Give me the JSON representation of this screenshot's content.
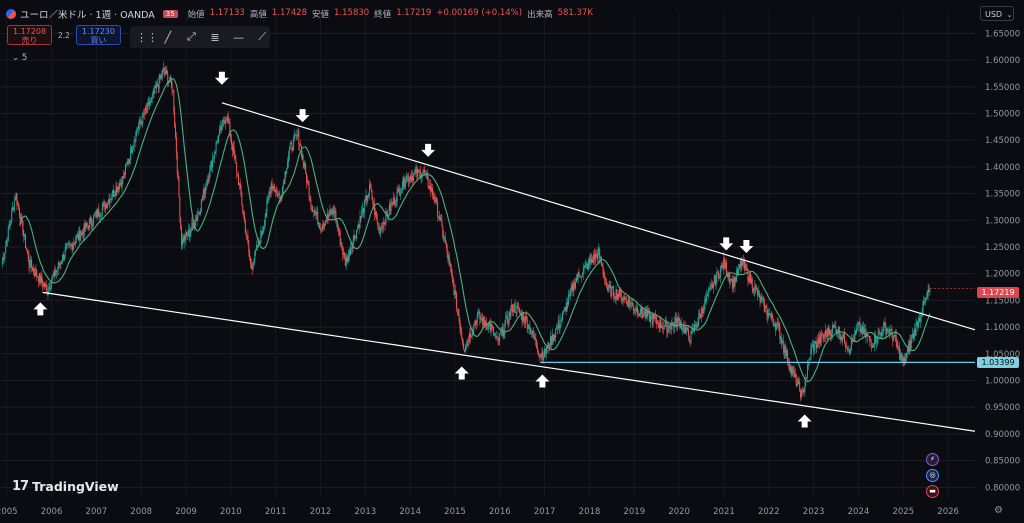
{
  "header": {
    "symbol": "ユーロ／米ドル · 1週 · OANDA",
    "badge": "35",
    "open_label": "始値",
    "open": "1.17133",
    "high_label": "高値",
    "high": "1.17428",
    "low_label": "安値",
    "low": "1.15830",
    "close_label": "終値",
    "close": "1.17219",
    "change": "+0.00169 (+0.14%)",
    "volume_label": "出来高",
    "volume": "581.37K"
  },
  "trade": {
    "sell_price": "1.17208",
    "sell_label": "売り",
    "spread": "2.2",
    "buy_price": "1.17230",
    "buy_label": "買い"
  },
  "toolbar": {
    "icons": [
      "drag-handle-icon",
      "trend-line-icon",
      "ray-icon",
      "fib-icon",
      "horizontal-line-icon",
      "extended-line-icon"
    ]
  },
  "indicators": {
    "count": "5"
  },
  "currency": "USD",
  "logo": {
    "mark": "17",
    "text": "TradingView"
  },
  "colors": {
    "bull": "#26a69a",
    "bear": "#ef5350",
    "ma": "#4caf7f",
    "trendline": "#ffffff",
    "support": "#5fd0e8",
    "price_tag": "#e0454d",
    "background": "#0b0c12"
  },
  "chart_data": {
    "type": "candlestick",
    "timeframe": "1週",
    "x_ticks": [
      "2005",
      "2006",
      "2007",
      "2008",
      "2009",
      "2010",
      "2011",
      "2012",
      "2013",
      "2014",
      "2015",
      "2016",
      "2017",
      "2018",
      "2019",
      "2020",
      "2021",
      "2022",
      "2023",
      "2024",
      "2025",
      "2026"
    ],
    "y_ticks": [
      0.8,
      0.85,
      0.9,
      0.95,
      1.0,
      1.05,
      1.1,
      1.15,
      1.2,
      1.25,
      1.3,
      1.35,
      1.4,
      1.45,
      1.5,
      1.55,
      1.6,
      1.65
    ],
    "ylim": [
      0.78,
      1.69
    ],
    "xlim": [
      2004.85,
      2026.6
    ],
    "price_path": [
      [
        2004.9,
        1.22
      ],
      [
        2005.2,
        1.35
      ],
      [
        2005.5,
        1.22
      ],
      [
        2005.9,
        1.17
      ],
      [
        2006.3,
        1.24
      ],
      [
        2006.8,
        1.29
      ],
      [
        2007.2,
        1.33
      ],
      [
        2007.6,
        1.38
      ],
      [
        2007.9,
        1.47
      ],
      [
        2008.2,
        1.52
      ],
      [
        2008.5,
        1.58
      ],
      [
        2008.7,
        1.55
      ],
      [
        2008.9,
        1.26
      ],
      [
        2009.1,
        1.28
      ],
      [
        2009.3,
        1.32
      ],
      [
        2009.7,
        1.45
      ],
      [
        2009.9,
        1.5
      ],
      [
        2010.2,
        1.36
      ],
      [
        2010.45,
        1.21
      ],
      [
        2010.7,
        1.28
      ],
      [
        2010.9,
        1.37
      ],
      [
        2011.1,
        1.34
      ],
      [
        2011.3,
        1.43
      ],
      [
        2011.5,
        1.46
      ],
      [
        2011.8,
        1.33
      ],
      [
        2012.0,
        1.29
      ],
      [
        2012.3,
        1.32
      ],
      [
        2012.55,
        1.22
      ],
      [
        2012.8,
        1.28
      ],
      [
        2013.1,
        1.36
      ],
      [
        2013.3,
        1.28
      ],
      [
        2013.6,
        1.33
      ],
      [
        2013.9,
        1.38
      ],
      [
        2014.3,
        1.39
      ],
      [
        2014.55,
        1.34
      ],
      [
        2014.8,
        1.25
      ],
      [
        2015.0,
        1.16
      ],
      [
        2015.2,
        1.06
      ],
      [
        2015.5,
        1.12
      ],
      [
        2015.8,
        1.1
      ],
      [
        2015.95,
        1.07
      ],
      [
        2016.3,
        1.14
      ],
      [
        2016.6,
        1.11
      ],
      [
        2016.9,
        1.05
      ],
      [
        2017.0,
        1.05
      ],
      [
        2017.4,
        1.12
      ],
      [
        2017.7,
        1.19
      ],
      [
        2018.0,
        1.22
      ],
      [
        2018.2,
        1.24
      ],
      [
        2018.4,
        1.17
      ],
      [
        2018.7,
        1.16
      ],
      [
        2018.95,
        1.14
      ],
      [
        2019.3,
        1.12
      ],
      [
        2019.7,
        1.1
      ],
      [
        2020.0,
        1.11
      ],
      [
        2020.25,
        1.08
      ],
      [
        2020.5,
        1.13
      ],
      [
        2020.75,
        1.18
      ],
      [
        2021.0,
        1.22
      ],
      [
        2021.2,
        1.18
      ],
      [
        2021.4,
        1.22
      ],
      [
        2021.7,
        1.17
      ],
      [
        2021.95,
        1.13
      ],
      [
        2022.2,
        1.1
      ],
      [
        2022.5,
        1.02
      ],
      [
        2022.75,
        0.97
      ],
      [
        2022.95,
        1.06
      ],
      [
        2023.3,
        1.09
      ],
      [
        2023.5,
        1.1
      ],
      [
        2023.8,
        1.06
      ],
      [
        2024.0,
        1.1
      ],
      [
        2024.3,
        1.07
      ],
      [
        2024.6,
        1.1
      ],
      [
        2024.8,
        1.08
      ],
      [
        2025.0,
        1.03
      ],
      [
        2025.2,
        1.08
      ],
      [
        2025.45,
        1.14
      ],
      [
        2025.6,
        1.17
      ]
    ],
    "annotations": {
      "upper_trendline": [
        [
          2009.8,
          1.52
        ],
        [
          2026.6,
          1.095
        ]
      ],
      "lower_trendline": [
        [
          2005.8,
          1.165
        ],
        [
          2026.6,
          0.905
        ]
      ],
      "support_level": {
        "from": 2016.9,
        "value": 1.034
      },
      "down_arrows": [
        [
          2009.8,
          1.565
        ],
        [
          2011.6,
          1.495
        ],
        [
          2014.4,
          1.43
        ],
        [
          2021.05,
          1.255
        ],
        [
          2021.5,
          1.25
        ]
      ],
      "up_arrows": [
        [
          2005.75,
          1.135
        ],
        [
          2015.15,
          1.015
        ],
        [
          2016.95,
          1.0
        ],
        [
          2022.8,
          0.925
        ]
      ]
    },
    "last_price": "1.17219",
    "support_label": "1.03399"
  }
}
